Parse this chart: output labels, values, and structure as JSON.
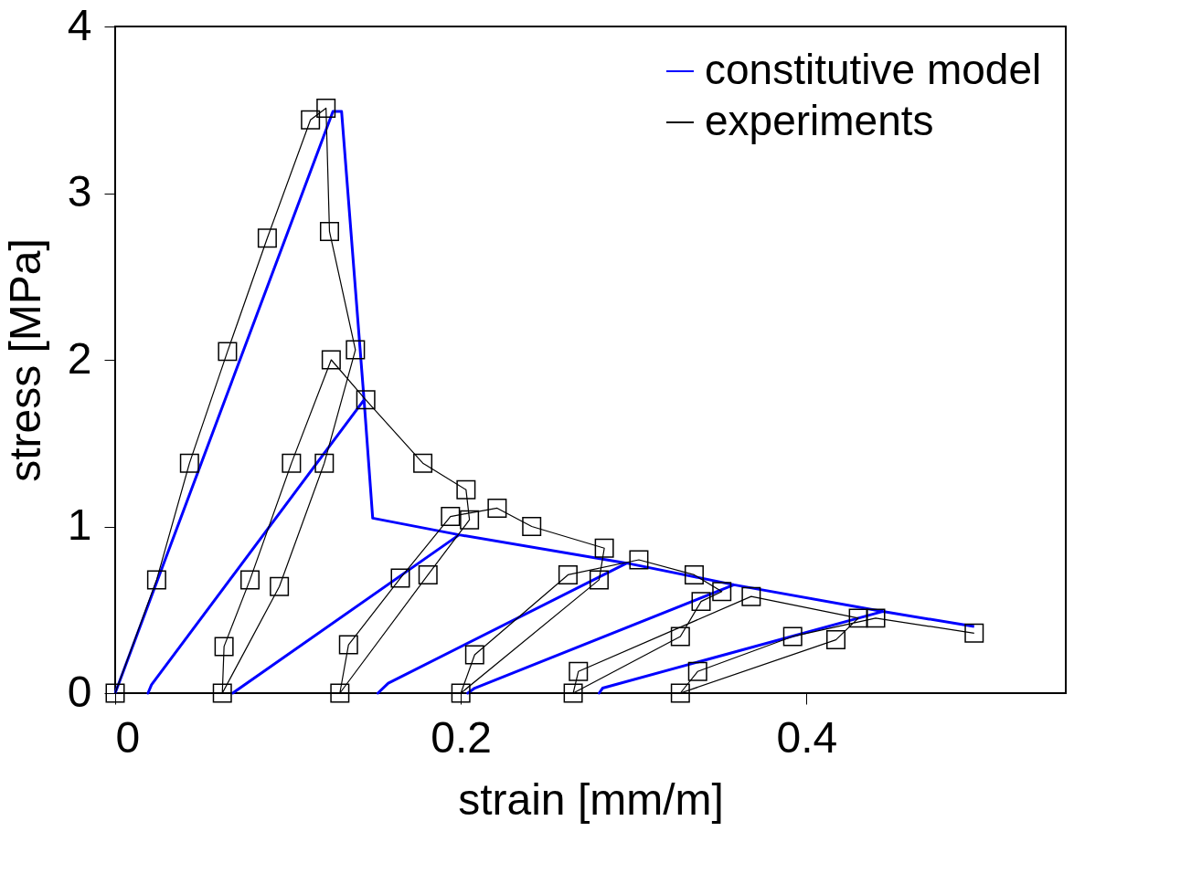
{
  "chart_data": {
    "type": "line",
    "xlabel": "strain [mm/m]",
    "ylabel": "stress [MPa]",
    "xlim": [
      0,
      0.55
    ],
    "ylim": [
      0,
      4
    ],
    "xticks": [
      0,
      0.2,
      0.4
    ],
    "yticks": [
      0,
      1,
      2,
      3,
      4
    ],
    "grid": false,
    "legend": "top right",
    "series": [
      {
        "name": "constitutive model",
        "color": "#0000ff",
        "marker": "none",
        "line_style": "solid",
        "x": [
          0,
          0.126,
          0.131,
          0.144,
          0.021,
          0.019,
          0.021,
          0.144,
          0.149,
          0.199,
          0.068,
          0.199,
          0.296,
          0.158,
          0.152,
          0.158,
          0.296,
          0.358,
          0.208,
          0.204,
          0.208,
          0.358,
          0.444,
          0.282,
          0.28,
          0.282,
          0.444,
          0.497
        ],
        "values": [
          0,
          3.49,
          3.49,
          1.76,
          0.05,
          0,
          0.05,
          1.76,
          1.05,
          0.95,
          0,
          0.95,
          0.78,
          0.06,
          0,
          0.06,
          0.78,
          0.65,
          0.03,
          0,
          0.03,
          0.65,
          0.49,
          0.03,
          0,
          0.03,
          0.49,
          0.4
        ]
      },
      {
        "name": "experiments",
        "color": "#000000",
        "marker": "square",
        "line_style": "solid",
        "x": [
          0,
          0.024,
          0.043,
          0.065,
          0.088,
          0.113,
          0.122,
          0.124,
          0.139,
          0.121,
          0.095,
          0.062,
          0.063,
          0.078,
          0.102,
          0.125,
          0.145,
          0.178,
          0.203,
          0.205,
          0.181,
          0.13,
          0.135,
          0.165,
          0.194,
          0.221,
          0.241,
          0.283,
          0.28,
          0.2,
          0.208,
          0.262,
          0.303,
          0.335,
          0.351,
          0.339,
          0.327,
          0.265,
          0.268,
          0.368,
          0.43,
          0.417,
          0.327,
          0.337,
          0.392,
          0.44,
          0.497
        ],
        "values": [
          0,
          0.68,
          1.38,
          2.05,
          2.73,
          3.44,
          3.51,
          2.77,
          2.06,
          1.38,
          0.64,
          0,
          0.28,
          0.68,
          1.38,
          2.0,
          1.76,
          1.38,
          1.22,
          1.04,
          0.71,
          0,
          0.29,
          0.69,
          1.06,
          1.11,
          1.0,
          0.87,
          0.68,
          0,
          0.23,
          0.71,
          0.8,
          0.71,
          0.61,
          0.55,
          0.34,
          0,
          0.13,
          0.58,
          0.45,
          0.32,
          0,
          0.13,
          0.34,
          0.45,
          0.36
        ]
      }
    ]
  }
}
